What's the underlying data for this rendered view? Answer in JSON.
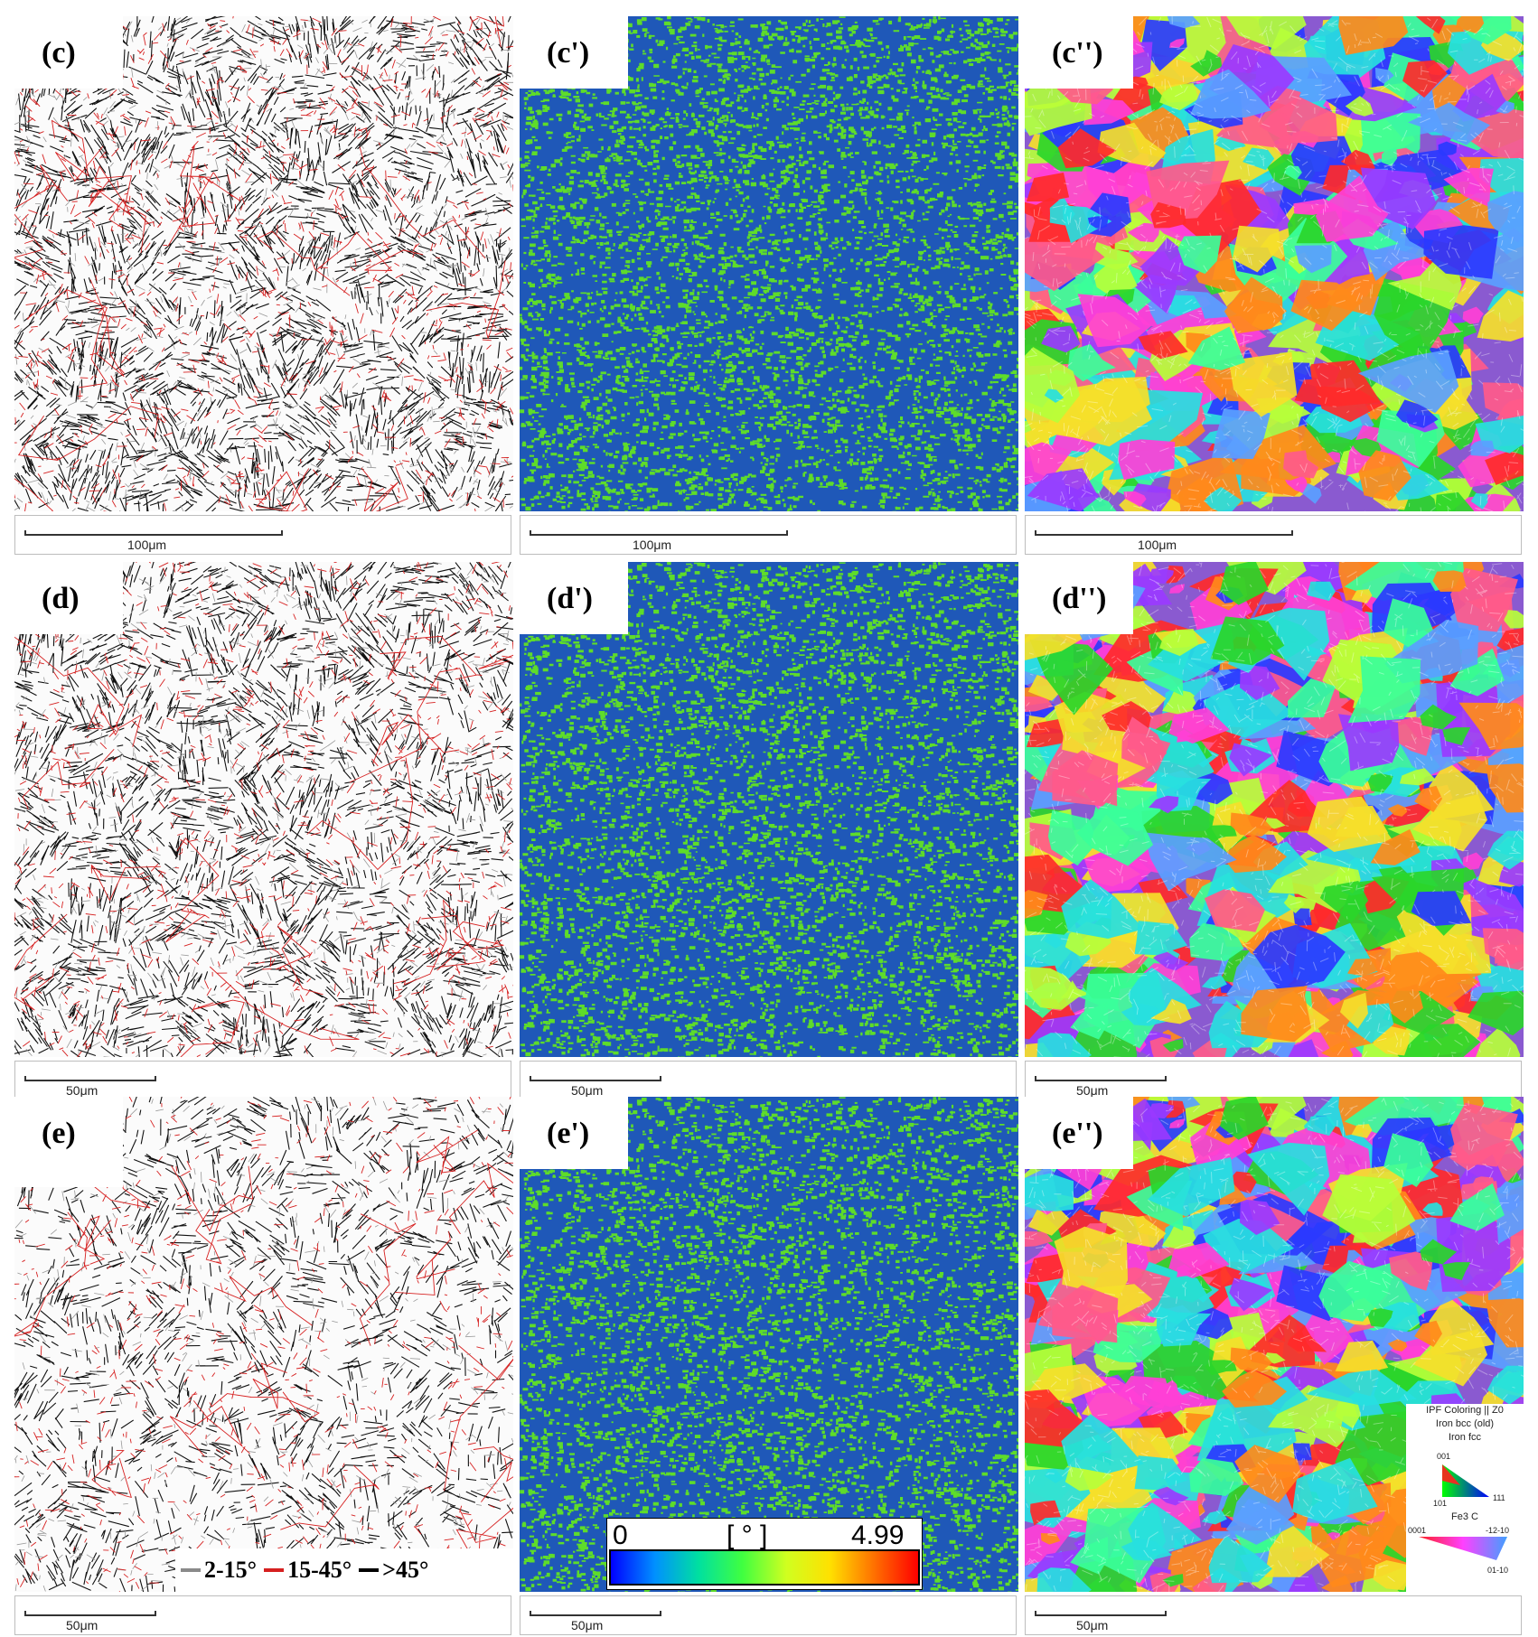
{
  "panels": [
    {
      "label": "(c)",
      "type": "boundary",
      "scale": "100μm",
      "density": 1.0
    },
    {
      "label": "(c')",
      "type": "kam",
      "scale": "100μm"
    },
    {
      "label": "(c'')",
      "type": "ipf",
      "scale": "100μm"
    },
    {
      "label": "(d)",
      "type": "boundary",
      "scale": "50μm",
      "density": 0.9
    },
    {
      "label": "(d')",
      "type": "kam",
      "scale": "50μm"
    },
    {
      "label": "(d'')",
      "type": "ipf",
      "scale": "50μm"
    },
    {
      "label": "(e)",
      "type": "boundary",
      "scale": "50μm",
      "density": 0.6
    },
    {
      "label": "(e')",
      "type": "kam",
      "scale": "50μm"
    },
    {
      "label": "(e'')",
      "type": "ipf",
      "scale": "50μm"
    }
  ],
  "boundary_legend": [
    {
      "text": "2-15°",
      "color": "#8a8a8a"
    },
    {
      "text": "15-45°",
      "color": "#d62020"
    },
    {
      "text": ">45°",
      "color": "#000000"
    }
  ],
  "colorbar": {
    "min": "0",
    "unit": "[ ° ]",
    "max": "4.99"
  },
  "ipf_legend": {
    "title": "IPF Coloring || Z0",
    "phase1": "Iron bcc (old)",
    "phase2": "Iron fcc",
    "corner_top": "001",
    "corner_left": "101",
    "corner_right": "111",
    "phase3": "Fe3 C",
    "hex_top_left": "0001",
    "hex_top_right": "-12-10",
    "hex_bottom": "01-10"
  },
  "colors": {
    "kam_low": "#1f58b8",
    "kam_high": "#5edc2a"
  }
}
